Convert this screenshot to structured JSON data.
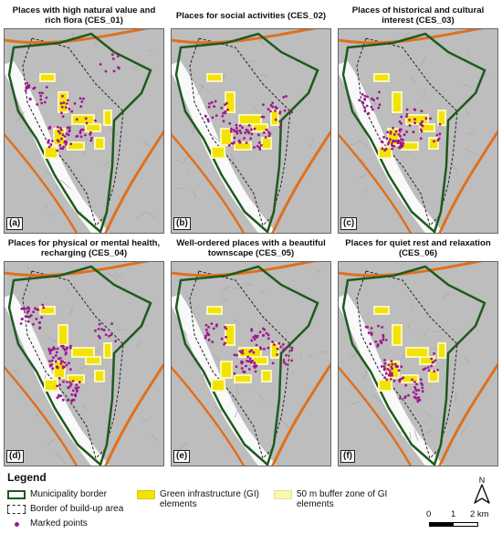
{
  "panels": [
    {
      "title": "Places with high natural value and rich flora (CES_01)",
      "label": "(a)"
    },
    {
      "title": "Places for social activities (CES_02)",
      "label": "(b)"
    },
    {
      "title": "Places of historical and cultural interest (CES_03)",
      "label": "(c)"
    },
    {
      "title": "Places for physical or mental health, recharging (CES_04)",
      "label": "(d)"
    },
    {
      "title": "Well-ordered places with a beautiful townscape (CES_05)",
      "label": "(e)"
    },
    {
      "title": "Places for quiet rest and relaxation (CES_06)",
      "label": "(f)"
    }
  ],
  "legend": {
    "title": "Legend",
    "municipality_border": "Municipality border",
    "buildup_border": "Border of build-up area",
    "marked_points": "Marked points",
    "gi_elements": "Green infrastructure (GI) elements",
    "buffer_zone": "50 m buffer zone of GI elements"
  },
  "scale": {
    "tick0": "0",
    "tick1": "1",
    "tick2": "2 km"
  },
  "north_arrow_letter": "N",
  "colors": {
    "municipality_border": "#1e5a1e",
    "roads": "#e0701e",
    "river": "#ffffff",
    "gi": "#f2e400",
    "buffer": "#fbf6b4",
    "marked_points": "#a0168f",
    "background": "#bdbdbd"
  }
}
